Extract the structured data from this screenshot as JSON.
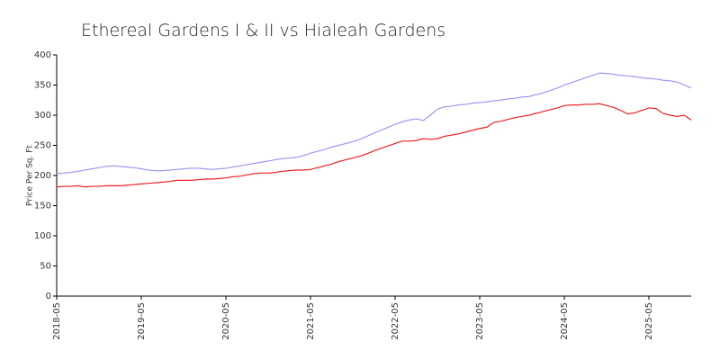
{
  "chart_data": {
    "type": "line",
    "title": "Ethereal Gardens I & II vs Hialeah Gardens",
    "y_label": "Price Per Sq. Ft",
    "x": [
      "2018-05",
      "2018-06",
      "2018-07",
      "2018-08",
      "2018-09",
      "2018-10",
      "2018-11",
      "2018-12",
      "2019-01",
      "2019-02",
      "2019-03",
      "2019-04",
      "2019-05",
      "2019-06",
      "2019-07",
      "2019-08",
      "2019-09",
      "2019-10",
      "2019-11",
      "2019-12",
      "2020-01",
      "2020-02",
      "2020-03",
      "2020-04",
      "2020-05",
      "2020-06",
      "2020-07",
      "2020-08",
      "2020-09",
      "2020-10",
      "2020-11",
      "2020-12",
      "2021-01",
      "2021-02",
      "2021-03",
      "2021-04",
      "2021-05",
      "2021-06",
      "2021-07",
      "2021-08",
      "2021-09",
      "2021-10",
      "2021-11",
      "2021-12",
      "2022-01",
      "2022-02",
      "2022-03",
      "2022-04",
      "2022-05",
      "2022-06",
      "2022-07",
      "2022-08",
      "2022-09",
      "2022-10",
      "2022-11",
      "2022-12",
      "2023-01",
      "2023-02",
      "2023-03",
      "2023-04",
      "2023-05",
      "2023-06",
      "2023-07",
      "2023-08",
      "2023-09",
      "2023-10",
      "2023-11",
      "2023-12",
      "2024-01",
      "2024-02",
      "2024-03",
      "2024-04",
      "2024-05",
      "2024-06",
      "2024-07",
      "2024-08",
      "2024-09",
      "2024-10",
      "2024-11",
      "2024-12",
      "2025-01",
      "2025-02",
      "2025-03",
      "2025-04",
      "2025-05",
      "2025-06",
      "2025-07",
      "2025-08",
      "2025-09",
      "2025-10",
      "2025-11"
    ],
    "series": [
      {
        "color": "#9a9af0",
        "values": [
          203,
          204,
          205,
          207,
          209,
          211,
          213,
          215,
          216,
          215,
          214,
          213,
          211,
          209,
          208,
          208,
          209,
          210,
          211,
          212,
          212,
          211,
          210,
          211,
          212,
          214,
          216,
          218,
          220,
          222,
          224,
          226,
          228,
          229,
          230,
          233,
          237,
          240,
          243,
          247,
          250,
          253,
          256,
          260,
          265,
          270,
          275,
          280,
          285,
          289,
          292,
          294,
          291,
          300,
          310,
          314,
          315,
          317,
          318,
          320,
          321,
          322,
          324,
          325,
          327,
          328,
          330,
          331,
          334,
          337,
          341,
          345,
          350,
          354,
          358,
          362,
          366,
          370,
          369,
          368,
          366,
          365,
          364,
          362,
          361,
          360,
          358,
          357,
          355,
          350,
          345
        ]
      },
      {
        "color": "#ee2222",
        "values": [
          181,
          182,
          182,
          183,
          181,
          182,
          182,
          183,
          183,
          183,
          184,
          185,
          186,
          187,
          188,
          189,
          190,
          192,
          192,
          192,
          193,
          194,
          194,
          195,
          196,
          198,
          199,
          201,
          203,
          204,
          204,
          205,
          207,
          208,
          209,
          209,
          210,
          213,
          216,
          219,
          223,
          226,
          229,
          232,
          236,
          241,
          245,
          249,
          253,
          257,
          257,
          258,
          261,
          260,
          261,
          265,
          267,
          269,
          272,
          275,
          278,
          280,
          288,
          290,
          293,
          296,
          298,
          300,
          303,
          306,
          309,
          312,
          316,
          317,
          317,
          318,
          318,
          319,
          316,
          313,
          308,
          302,
          304,
          308,
          312,
          311,
          303,
          300,
          298,
          300,
          292
        ]
      }
    ],
    "xticks": [
      "2018-05",
      "2019-05",
      "2020-05",
      "2021-05",
      "2022-05",
      "2023-05",
      "2024-05",
      "2025-05"
    ],
    "ylim": [
      0,
      400
    ],
    "yticks": [
      0,
      50,
      100,
      150,
      200,
      250,
      300,
      350,
      400
    ],
    "grid": false
  }
}
